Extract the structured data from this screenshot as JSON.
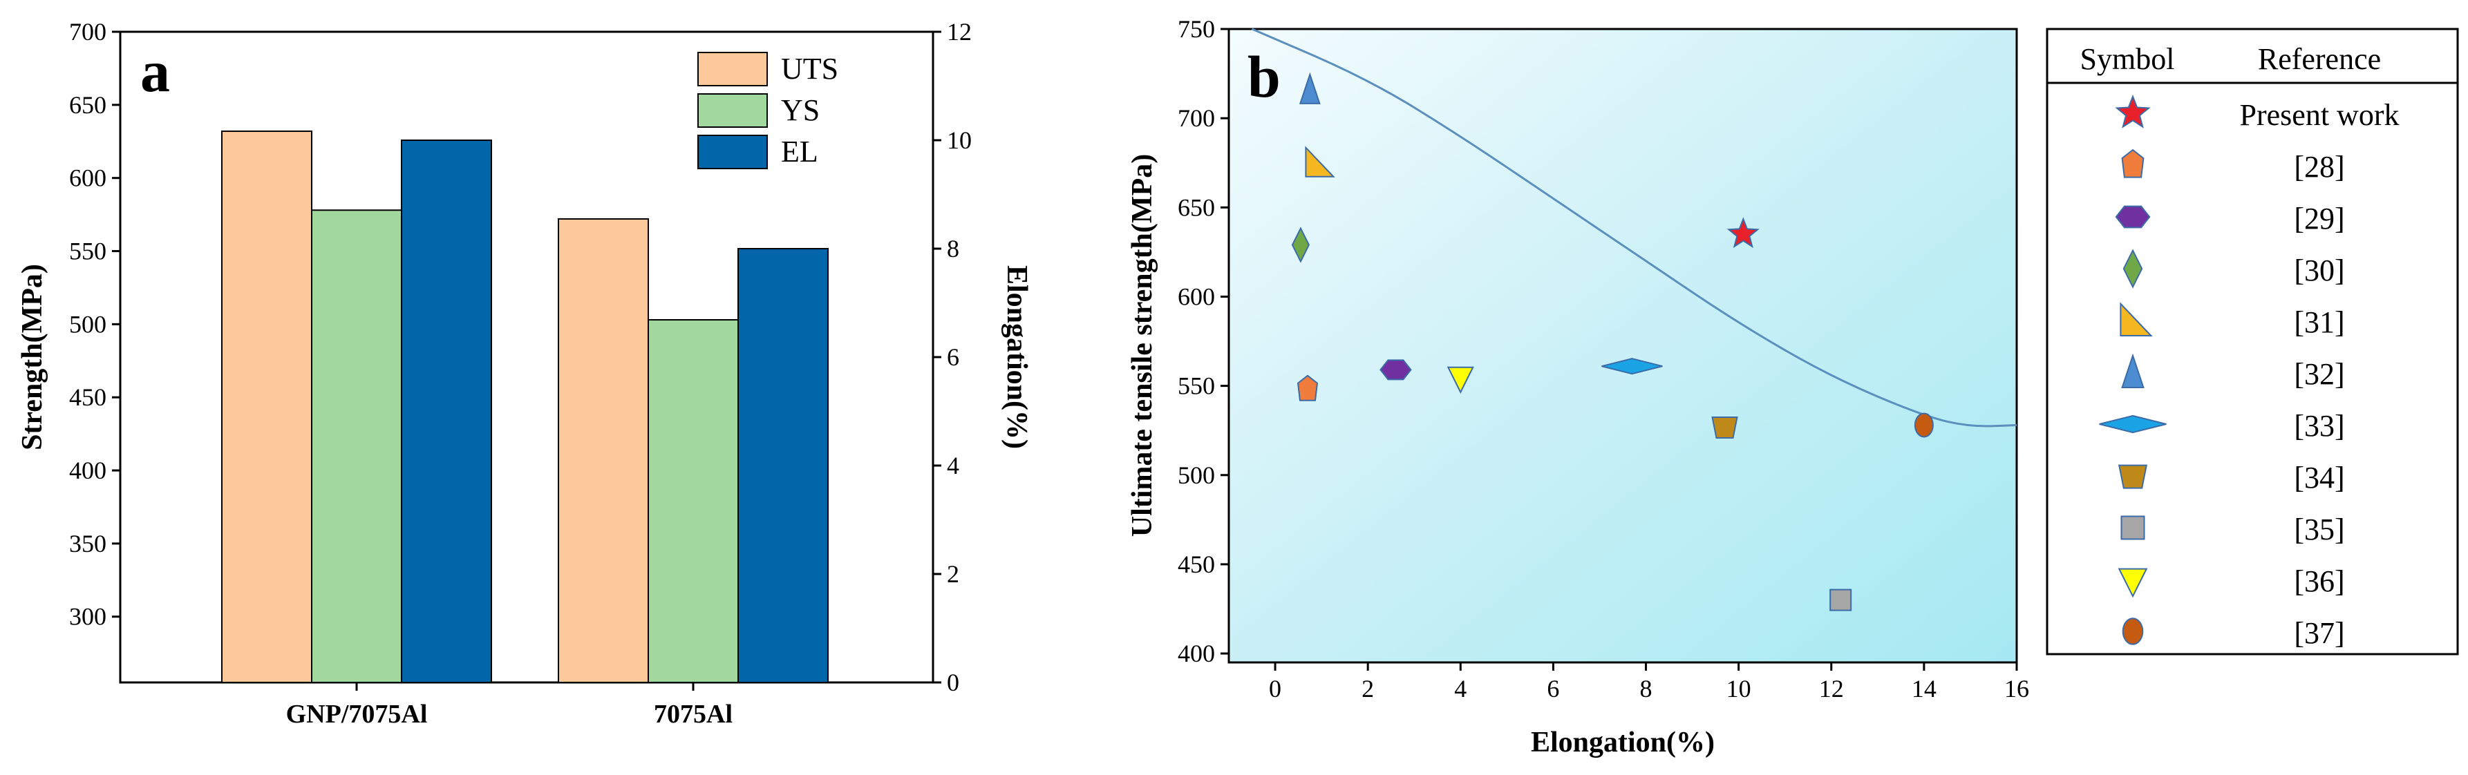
{
  "chart_data": [
    {
      "type": "bar",
      "panel_label": "a",
      "categories": [
        "GNP/7075Al",
        "7075Al"
      ],
      "series": [
        {
          "name": "UTS",
          "axis": "left",
          "color": "#FDC89A",
          "values": [
            632,
            572
          ]
        },
        {
          "name": "YS",
          "axis": "left",
          "color": "#A0D89E",
          "values": [
            578,
            503
          ]
        },
        {
          "name": "EL",
          "axis": "right",
          "color": "#0066AA",
          "values": [
            10.0,
            8.0
          ]
        }
      ],
      "ylabel": "Strength(MPa)",
      "ylim": [
        255,
        700
      ],
      "yticks": [
        300,
        350,
        400,
        450,
        500,
        550,
        600,
        650,
        700
      ],
      "y2label": "Elongation(%)",
      "y2lim": [
        0,
        12
      ],
      "y2ticks": [
        0,
        2,
        4,
        6,
        8,
        10,
        12
      ],
      "legend": "top-right"
    },
    {
      "type": "scatter",
      "panel_label": "b",
      "xlabel": "Elongation(%)",
      "ylabel": "Ultimate tensile strength(MPa)",
      "xlim": [
        -1,
        16
      ],
      "ylim": [
        395,
        750
      ],
      "xticks": [
        0,
        2,
        4,
        6,
        8,
        10,
        12,
        14,
        16
      ],
      "yticks": [
        400,
        450,
        500,
        550,
        600,
        650,
        700,
        750
      ],
      "trend_curve": [
        [
          -0.5,
          750
        ],
        [
          2,
          722
        ],
        [
          4,
          690
        ],
        [
          6,
          655
        ],
        [
          8,
          620
        ],
        [
          10,
          585
        ],
        [
          12,
          555
        ],
        [
          14,
          533
        ],
        [
          15,
          527
        ],
        [
          16,
          528
        ]
      ],
      "legend": {
        "header_symbol": "Symbol",
        "header_reference": "Reference"
      },
      "points": [
        {
          "ref": "Present work",
          "shape": "star",
          "color": "#E8202A",
          "x": 10.1,
          "y": 635
        },
        {
          "ref": "[28]",
          "shape": "pentagon",
          "color": "#F07D3C",
          "x": 0.7,
          "y": 548
        },
        {
          "ref": "[29]",
          "shape": "hexagon",
          "color": "#7030A0",
          "x": 2.6,
          "y": 559
        },
        {
          "ref": "[30]",
          "shape": "diamond",
          "color": "#70A848",
          "x": 0.55,
          "y": 629
        },
        {
          "ref": "[31]",
          "shape": "right-triangle",
          "color": "#F5B820",
          "x": 0.9,
          "y": 675
        },
        {
          "ref": "[32]",
          "shape": "triangle",
          "color": "#4D8CD0",
          "x": 0.75,
          "y": 716
        },
        {
          "ref": "[33]",
          "shape": "flat-diamond",
          "color": "#1AA4E6",
          "x": 7.7,
          "y": 561
        },
        {
          "ref": "[34]",
          "shape": "trapezoid",
          "color": "#BF8A1A",
          "x": 9.7,
          "y": 527
        },
        {
          "ref": "[35]",
          "shape": "square",
          "color": "#A6A6A6",
          "x": 12.2,
          "y": 430
        },
        {
          "ref": "[36]",
          "shape": "down-triangle",
          "color": "#FFFF00",
          "x": 4.0,
          "y": 555
        },
        {
          "ref": "[37]",
          "shape": "ellipse",
          "color": "#C55A11",
          "x": 14.0,
          "y": 528
        }
      ]
    }
  ]
}
